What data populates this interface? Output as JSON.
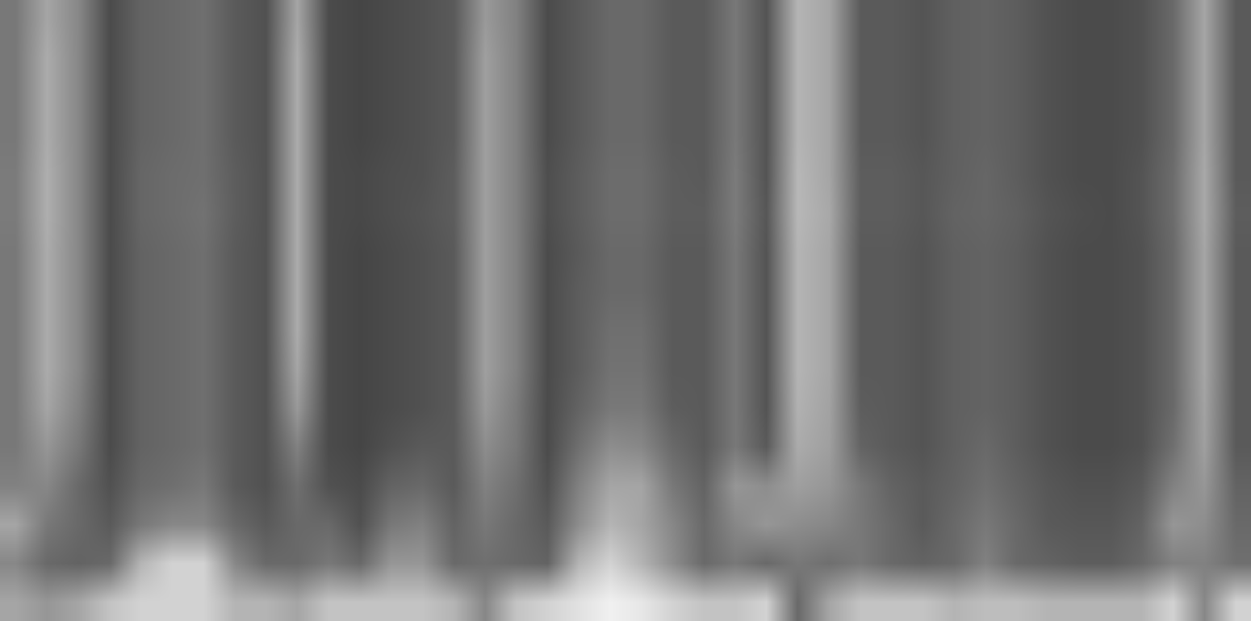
{
  "chart_data": {
    "type": "heatmap",
    "tick_labels": false,
    "zlim": [
      0,
      100
    ],
    "cells": [
      [
        55,
        70,
        60,
        40,
        48,
        50,
        52,
        45,
        42,
        70,
        40,
        38,
        40,
        42,
        45,
        66,
        58,
        40,
        45,
        50,
        50,
        45,
        45,
        55,
        43,
        75,
        70,
        45,
        45,
        43,
        47,
        48,
        46,
        42,
        40,
        40,
        42,
        50,
        70,
        45
      ],
      [
        55,
        72,
        60,
        40,
        48,
        50,
        52,
        45,
        42,
        72,
        40,
        38,
        40,
        42,
        45,
        68,
        58,
        40,
        45,
        50,
        50,
        45,
        45,
        55,
        43,
        75,
        70,
        45,
        45,
        43,
        47,
        48,
        46,
        42,
        40,
        40,
        42,
        50,
        70,
        45
      ],
      [
        55,
        72,
        60,
        40,
        48,
        50,
        52,
        45,
        42,
        72,
        40,
        38,
        40,
        42,
        45,
        68,
        58,
        40,
        45,
        50,
        50,
        45,
        45,
        55,
        43,
        75,
        70,
        45,
        45,
        43,
        47,
        48,
        46,
        42,
        40,
        40,
        42,
        50,
        70,
        45
      ],
      [
        55,
        72,
        60,
        40,
        48,
        50,
        52,
        45,
        42,
        72,
        40,
        38,
        40,
        42,
        45,
        68,
        58,
        40,
        45,
        50,
        50,
        45,
        45,
        55,
        43,
        75,
        70,
        45,
        45,
        43,
        47,
        48,
        46,
        42,
        40,
        40,
        42,
        50,
        70,
        45
      ],
      [
        56,
        73,
        60,
        40,
        49,
        51,
        52,
        46,
        42,
        72,
        40,
        39,
        41,
        42,
        46,
        68,
        58,
        41,
        46,
        51,
        51,
        46,
        45,
        56,
        43,
        76,
        70,
        46,
        46,
        44,
        47,
        49,
        46,
        42,
        40,
        40,
        43,
        51,
        71,
        45
      ],
      [
        56,
        73,
        60,
        40,
        49,
        51,
        53,
        46,
        42,
        72,
        40,
        39,
        41,
        43,
        46,
        68,
        58,
        41,
        46,
        51,
        51,
        46,
        46,
        56,
        44,
        76,
        71,
        46,
        46,
        44,
        48,
        49,
        47,
        43,
        41,
        40,
        43,
        51,
        71,
        46
      ],
      [
        55,
        72,
        60,
        40,
        48,
        50,
        52,
        45,
        42,
        72,
        40,
        38,
        40,
        42,
        45,
        68,
        58,
        40,
        45,
        50,
        50,
        45,
        45,
        55,
        43,
        75,
        70,
        45,
        45,
        43,
        47,
        48,
        46,
        42,
        40,
        40,
        42,
        50,
        70,
        45
      ],
      [
        55,
        72,
        60,
        40,
        48,
        50,
        52,
        45,
        42,
        72,
        40,
        38,
        40,
        42,
        45,
        68,
        58,
        40,
        46,
        50,
        50,
        45,
        45,
        55,
        43,
        75,
        70,
        45,
        45,
        43,
        47,
        48,
        46,
        42,
        40,
        40,
        42,
        50,
        70,
        45
      ],
      [
        55,
        72,
        60,
        40,
        48,
        50,
        52,
        45,
        42,
        72,
        40,
        38,
        40,
        42,
        45,
        68,
        58,
        40,
        46,
        52,
        52,
        45,
        45,
        55,
        43,
        75,
        70,
        45,
        45,
        43,
        47,
        48,
        46,
        42,
        40,
        40,
        42,
        50,
        70,
        45
      ],
      [
        55,
        72,
        60,
        40,
        48,
        50,
        52,
        45,
        42,
        70,
        40,
        38,
        40,
        42,
        45,
        68,
        58,
        40,
        46,
        53,
        53,
        45,
        45,
        55,
        43,
        75,
        70,
        45,
        45,
        43,
        47,
        48,
        46,
        42,
        40,
        40,
        42,
        50,
        70,
        45
      ],
      [
        55,
        70,
        58,
        40,
        48,
        50,
        52,
        45,
        42,
        66,
        40,
        38,
        40,
        42,
        45,
        66,
        56,
        40,
        48,
        55,
        55,
        46,
        45,
        55,
        43,
        74,
        69,
        46,
        45,
        43,
        47,
        48,
        46,
        42,
        40,
        40,
        42,
        50,
        69,
        45
      ],
      [
        55,
        65,
        55,
        40,
        48,
        50,
        52,
        45,
        42,
        58,
        40,
        38,
        42,
        45,
        45,
        62,
        55,
        40,
        52,
        62,
        60,
        50,
        45,
        55,
        45,
        72,
        68,
        48,
        45,
        43,
        47,
        50,
        46,
        42,
        40,
        40,
        42,
        52,
        68,
        45
      ],
      [
        58,
        60,
        50,
        42,
        50,
        52,
        55,
        45,
        42,
        52,
        42,
        40,
        48,
        50,
        45,
        58,
        52,
        42,
        58,
        70,
        70,
        55,
        48,
        65,
        62,
        68,
        65,
        55,
        48,
        45,
        48,
        52,
        48,
        44,
        42,
        42,
        45,
        58,
        65,
        48
      ],
      [
        70,
        55,
        50,
        45,
        55,
        60,
        60,
        50,
        45,
        50,
        50,
        42,
        55,
        58,
        48,
        55,
        50,
        45,
        62,
        75,
        70,
        60,
        50,
        60,
        65,
        62,
        60,
        55,
        50,
        45,
        50,
        55,
        50,
        45,
        44,
        44,
        48,
        65,
        62,
        50
      ],
      [
        60,
        50,
        48,
        50,
        75,
        85,
        85,
        60,
        50,
        50,
        55,
        50,
        65,
        65,
        50,
        52,
        50,
        48,
        75,
        85,
        75,
        62,
        50,
        55,
        50,
        55,
        52,
        55,
        50,
        48,
        50,
        58,
        50,
        48,
        46,
        46,
        50,
        58,
        58,
        52
      ],
      [
        70,
        65,
        70,
        80,
        85,
        85,
        85,
        75,
        75,
        70,
        80,
        80,
        80,
        80,
        75,
        60,
        80,
        85,
        90,
        95,
        92,
        85,
        80,
        80,
        85,
        50,
        70,
        80,
        80,
        80,
        75,
        78,
        78,
        75,
        75,
        75,
        75,
        85,
        60,
        85
      ]
    ]
  }
}
